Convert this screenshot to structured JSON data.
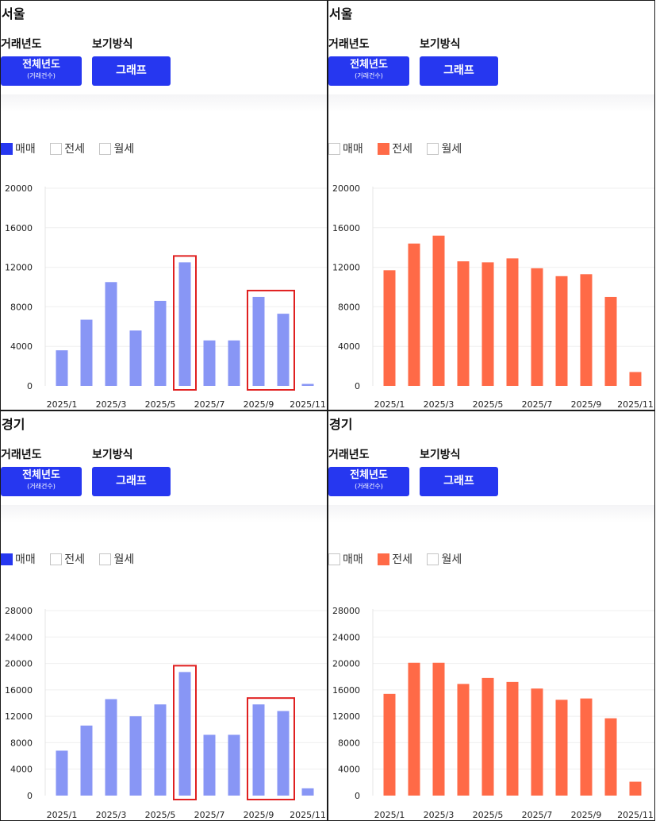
{
  "ui": {
    "year_label": "거래년도",
    "view_label": "보기방식",
    "year_button_main": "전체년도",
    "year_button_sub": "(거래건수)",
    "view_button": "그래프",
    "legend": [
      "매매",
      "전세",
      "월세"
    ],
    "accent": "#2637f0",
    "sale_bar_color": "#8896f5",
    "jeonse_bar_color": "#ff6a47",
    "highlight_color": "#e02020"
  },
  "panels": [
    {
      "region": "서울",
      "active": 0
    },
    {
      "region": "서울",
      "active": 1
    },
    {
      "region": "경기",
      "active": 0
    },
    {
      "region": "경기",
      "active": 1
    }
  ],
  "chart_data": [
    {
      "type": "bar",
      "region": "서울",
      "series": [
        {
          "name": "매매",
          "values": [
            3600,
            6700,
            10500,
            5600,
            8600,
            12500,
            4600,
            4600,
            9000,
            7300,
            200
          ]
        }
      ],
      "categories": [
        "2025/1",
        "2025/2",
        "2025/3",
        "2025/4",
        "2025/5",
        "2025/6",
        "2025/7",
        "2025/8",
        "2025/9",
        "2025/10",
        "2025/11"
      ],
      "tick_labels": [
        "2025/1",
        "2025/3",
        "2025/5",
        "2025/7",
        "2025/9",
        "2025/11"
      ],
      "yticks": [
        0,
        4000,
        8000,
        12000,
        16000,
        20000
      ],
      "ylim": [
        0,
        20000
      ],
      "highlighted": [
        [
          5,
          5
        ],
        [
          8,
          9
        ]
      ]
    },
    {
      "type": "bar",
      "region": "서울",
      "series": [
        {
          "name": "전세",
          "values": [
            11700,
            14400,
            15200,
            12600,
            12500,
            12900,
            11900,
            11100,
            11300,
            9000,
            1400
          ]
        }
      ],
      "categories": [
        "2025/1",
        "2025/2",
        "2025/3",
        "2025/4",
        "2025/5",
        "2025/6",
        "2025/7",
        "2025/8",
        "2025/9",
        "2025/10",
        "2025/11"
      ],
      "tick_labels": [
        "2025/1",
        "2025/3",
        "2025/5",
        "2025/7",
        "2025/9",
        "2025/11"
      ],
      "yticks": [
        0,
        4000,
        8000,
        12000,
        16000,
        20000
      ],
      "ylim": [
        0,
        20000
      ],
      "highlighted": []
    },
    {
      "type": "bar",
      "region": "경기",
      "series": [
        {
          "name": "매매",
          "values": [
            6800,
            10600,
            14600,
            12000,
            13800,
            18700,
            9200,
            9200,
            13800,
            12800,
            1100
          ]
        }
      ],
      "categories": [
        "2025/1",
        "2025/2",
        "2025/3",
        "2025/4",
        "2025/5",
        "2025/6",
        "2025/7",
        "2025/8",
        "2025/9",
        "2025/10",
        "2025/11"
      ],
      "tick_labels": [
        "2025/1",
        "2025/3",
        "2025/5",
        "2025/7",
        "2025/9",
        "2025/11"
      ],
      "yticks": [
        0,
        4000,
        8000,
        12000,
        16000,
        20000,
        24000,
        28000
      ],
      "ylim": [
        0,
        28000
      ],
      "highlighted": [
        [
          5,
          5
        ],
        [
          8,
          9
        ]
      ]
    },
    {
      "type": "bar",
      "region": "경기",
      "series": [
        {
          "name": "전세",
          "values": [
            15400,
            20100,
            20100,
            16900,
            17800,
            17200,
            16200,
            14500,
            14700,
            11700,
            2100
          ]
        }
      ],
      "categories": [
        "2025/1",
        "2025/2",
        "2025/3",
        "2025/4",
        "2025/5",
        "2025/6",
        "2025/7",
        "2025/8",
        "2025/9",
        "2025/10",
        "2025/11"
      ],
      "tick_labels": [
        "2025/1",
        "2025/3",
        "2025/5",
        "2025/7",
        "2025/9",
        "2025/11"
      ],
      "yticks": [
        0,
        4000,
        8000,
        12000,
        16000,
        20000,
        24000,
        28000
      ],
      "ylim": [
        0,
        28000
      ],
      "highlighted": []
    }
  ]
}
